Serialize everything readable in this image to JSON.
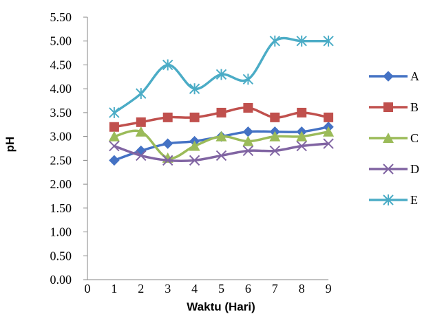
{
  "chart_data": {
    "type": "line",
    "xlabel": "Waktu (Hari)",
    "ylabel": "pH",
    "xlim": [
      0,
      9
    ],
    "ylim": [
      0,
      5.5
    ],
    "x_ticks": [
      "0",
      "1",
      "2",
      "3",
      "4",
      "5",
      "6",
      "7",
      "8",
      "9"
    ],
    "y_ticks": [
      "0.00",
      "0.50",
      "1.00",
      "1.50",
      "2.00",
      "2.50",
      "3.00",
      "3.50",
      "4.00",
      "4.50",
      "5.00",
      "5.50"
    ],
    "grid": false,
    "legend_position": "right",
    "x": [
      1,
      2,
      3,
      4,
      5,
      6,
      7,
      8,
      9
    ],
    "series": [
      {
        "name": "A",
        "color": "#4472C4",
        "marker": "diamond",
        "values": [
          2.5,
          2.7,
          2.85,
          2.9,
          3.0,
          3.1,
          3.1,
          3.1,
          3.2
        ]
      },
      {
        "name": "B",
        "color": "#C0504D",
        "marker": "square",
        "values": [
          3.2,
          3.3,
          3.4,
          3.4,
          3.5,
          3.6,
          3.4,
          3.5,
          3.4
        ]
      },
      {
        "name": "C",
        "color": "#9BBB59",
        "marker": "triangle",
        "values": [
          3.0,
          3.1,
          2.55,
          2.8,
          3.0,
          2.9,
          3.0,
          3.0,
          3.1
        ]
      },
      {
        "name": "D",
        "color": "#8064A2",
        "marker": "x",
        "values": [
          2.8,
          2.6,
          2.5,
          2.5,
          2.6,
          2.7,
          2.7,
          2.8,
          2.85
        ]
      },
      {
        "name": "E",
        "color": "#4BACC6",
        "marker": "star",
        "values": [
          3.5,
          3.9,
          4.5,
          4.0,
          4.3,
          4.2,
          5.0,
          5.0,
          5.0
        ]
      }
    ]
  }
}
